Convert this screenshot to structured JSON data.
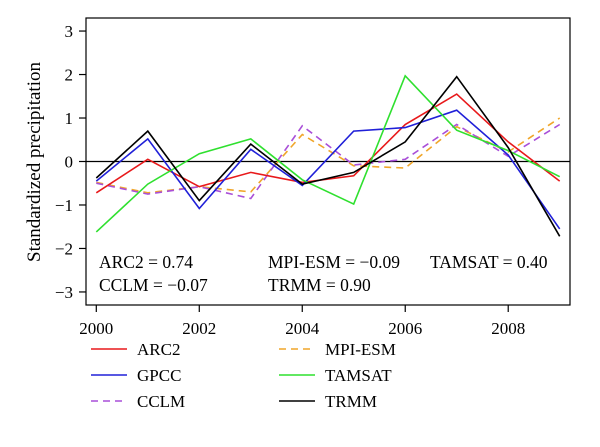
{
  "chart_data": {
    "type": "line",
    "title": "",
    "xlabel": "",
    "ylabel": "Standardized precipitation",
    "x": [
      2000,
      2001,
      2002,
      2003,
      2004,
      2005,
      2006,
      2007,
      2008,
      2009
    ],
    "xlim": [
      1999.8,
      2009.2
    ],
    "ylim": [
      -3.3,
      3.3
    ],
    "xticks": [
      2000,
      2002,
      2004,
      2006,
      2008
    ],
    "yticks": [
      -3,
      -2,
      -1,
      0,
      1,
      2,
      3
    ],
    "zero_line": true,
    "grid": false,
    "legend_position": "below",
    "series": [
      {
        "name": "ARC2",
        "color": "#e8191b",
        "dash": "solid",
        "values": [
          -0.72,
          0.05,
          -0.58,
          -0.25,
          -0.48,
          -0.33,
          0.85,
          1.55,
          0.45,
          -0.45
        ]
      },
      {
        "name": "GPCC",
        "color": "#2020d8",
        "dash": "solid",
        "values": [
          -0.45,
          0.52,
          -1.08,
          0.28,
          -0.55,
          0.7,
          0.78,
          1.18,
          0.15,
          -1.55
        ]
      },
      {
        "name": "CCLM",
        "color": "#a94fd8",
        "dash": "dashed",
        "values": [
          -0.5,
          -0.75,
          -0.58,
          -0.85,
          0.82,
          -0.08,
          0.05,
          0.85,
          0.12,
          0.85
        ]
      },
      {
        "name": "MPI-ESM",
        "color": "#f0a62a",
        "dash": "dashed",
        "values": [
          -0.48,
          -0.72,
          -0.58,
          -0.7,
          0.62,
          -0.1,
          -0.15,
          0.8,
          0.22,
          1.0
        ]
      },
      {
        "name": "TAMSAT",
        "color": "#2fe02f",
        "dash": "solid",
        "values": [
          -1.62,
          -0.52,
          0.18,
          0.52,
          -0.42,
          -0.98,
          1.97,
          0.72,
          0.25,
          -0.35
        ]
      },
      {
        "name": "TRMM",
        "color": "#000000",
        "dash": "solid",
        "values": [
          -0.38,
          0.7,
          -0.9,
          0.4,
          -0.52,
          -0.25,
          0.45,
          1.95,
          0.32,
          -1.72
        ]
      }
    ],
    "annotations": {
      "row1": [
        {
          "text": "ARC2 = 0.74"
        },
        {
          "text": "MPI-ESM = −0.09"
        },
        {
          "text": "TAMSAT = 0.40"
        }
      ],
      "row2": [
        {
          "text": "CCLM = −0.07"
        },
        {
          "text": "TRMM = 0.90"
        }
      ]
    },
    "legend": {
      "columns": [
        [
          "ARC2",
          "GPCC",
          "CCLM"
        ],
        [
          "MPI-ESM",
          "TAMSAT",
          "TRMM"
        ]
      ]
    }
  }
}
